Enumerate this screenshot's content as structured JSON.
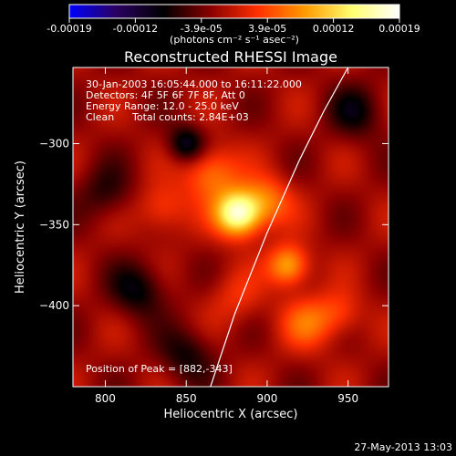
{
  "chart_data": {
    "type": "heatmap",
    "title": "Reconstructed RHESSI Image",
    "xlabel": "Heliocentric X (arcsec)",
    "ylabel": "Heliocentric Y (arcsec)",
    "xlim": [
      780,
      975
    ],
    "ylim": [
      -450,
      -253
    ],
    "xticks": [
      800,
      850,
      900,
      950
    ],
    "yticks": [
      -300,
      -350,
      -400
    ],
    "colorbar": {
      "range": [
        -0.00019,
        0.00019
      ],
      "ticks": [
        "-0.00019",
        "-0.00012",
        "-3.9e-05",
        "3.9e-05",
        "0.00012",
        "0.00019"
      ],
      "unit_label": "(photons cm⁻² s⁻¹ asec⁻²)",
      "colors": [
        "#0000ff",
        "#2a0060",
        "#000000",
        "#8a0000",
        "#ff3000",
        "#ff9a00",
        "#ffff70",
        "#ffffff"
      ]
    },
    "peak": {
      "x": 882,
      "y": -343
    },
    "sources": [
      {
        "x": 882,
        "y": -343,
        "amp": 1.0,
        "sigma": 10
      },
      {
        "x": 913,
        "y": -375,
        "amp": 0.6,
        "sigma": 9
      },
      {
        "x": 865,
        "y": -318,
        "amp": 0.45,
        "sigma": 12
      },
      {
        "x": 900,
        "y": -335,
        "amp": 0.4,
        "sigma": 11
      },
      {
        "x": 835,
        "y": -340,
        "amp": 0.3,
        "sigma": 11
      },
      {
        "x": 925,
        "y": -410,
        "amp": 0.35,
        "sigma": 12
      },
      {
        "x": 945,
        "y": -405,
        "amp": 0.25,
        "sigma": 10
      },
      {
        "x": 880,
        "y": -395,
        "amp": 0.2,
        "sigma": 12
      },
      {
        "x": 850,
        "y": -300,
        "amp": -0.45,
        "sigma": 8
      },
      {
        "x": 820,
        "y": -390,
        "amp": -0.35,
        "sigma": 12
      },
      {
        "x": 955,
        "y": -280,
        "amp": -0.3,
        "sigma": 12
      },
      {
        "x": 850,
        "y": -430,
        "amp": -0.3,
        "sigma": 12
      },
      {
        "x": 800,
        "y": -330,
        "amp": -0.25,
        "sigma": 12
      }
    ],
    "limb": {
      "x": [
        865,
        880,
        900,
        920,
        935,
        950
      ],
      "y": [
        -450,
        -405,
        -355,
        -310,
        -280,
        -253
      ]
    }
  },
  "annotations": {
    "time_range": "30-Jan-2003 16:05:44.000 to 16:11:22.000",
    "detectors": "Detectors: 4F 5F 6F 7F 8F, Att 0",
    "energy": "Energy Range: 12.0 - 25.0 keV",
    "clean": "Clean",
    "total_counts": "Total counts: 2.84E+03",
    "peak_label": "Position of Peak = [882,-343]"
  },
  "footer": {
    "timestamp": "27-May-2013 13:03"
  }
}
